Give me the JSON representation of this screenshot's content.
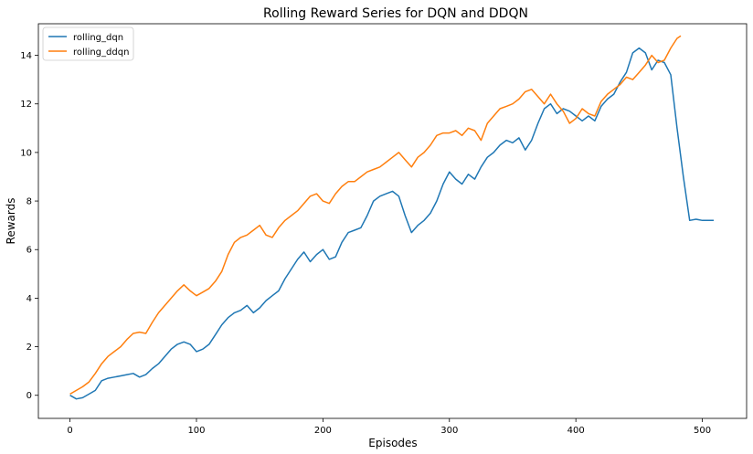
{
  "chart_data": {
    "type": "line",
    "title": "Rolling Reward Series for DQN and DDQN",
    "xlabel": "Episodes",
    "ylabel": "Rewards",
    "xlim": [
      -25,
      535
    ],
    "ylim": [
      -0.95,
      15.3
    ],
    "xticks": [
      0,
      100,
      200,
      300,
      400,
      500
    ],
    "yticks": [
      0,
      2,
      4,
      6,
      8,
      10,
      12,
      14
    ],
    "grid": false,
    "legend_position": "upper-left",
    "series": [
      {
        "name": "rolling_dqn",
        "color": "#1f77b4",
        "x": [
          0,
          5,
          10,
          15,
          20,
          25,
          30,
          35,
          40,
          45,
          50,
          55,
          60,
          65,
          70,
          75,
          80,
          85,
          90,
          95,
          100,
          105,
          110,
          115,
          120,
          125,
          130,
          135,
          140,
          145,
          150,
          155,
          160,
          165,
          170,
          175,
          180,
          185,
          190,
          195,
          200,
          205,
          210,
          215,
          220,
          225,
          230,
          235,
          240,
          245,
          250,
          255,
          260,
          265,
          270,
          275,
          280,
          285,
          290,
          295,
          300,
          305,
          310,
          315,
          320,
          325,
          330,
          335,
          340,
          345,
          350,
          355,
          360,
          365,
          370,
          375,
          380,
          385,
          390,
          395,
          400,
          405,
          410,
          415,
          420,
          425,
          430,
          435,
          440,
          445,
          450,
          455,
          460,
          465,
          470,
          475,
          480,
          485,
          490,
          495,
          500,
          505,
          509
        ],
        "y": [
          0.0,
          -0.15,
          -0.1,
          0.05,
          0.2,
          0.6,
          0.7,
          0.75,
          0.8,
          0.85,
          0.9,
          0.75,
          0.85,
          1.1,
          1.3,
          1.6,
          1.9,
          2.1,
          2.2,
          2.1,
          1.8,
          1.9,
          2.1,
          2.5,
          2.9,
          3.2,
          3.4,
          3.5,
          3.7,
          3.4,
          3.6,
          3.9,
          4.1,
          4.3,
          4.8,
          5.2,
          5.6,
          5.9,
          5.5,
          5.8,
          6.0,
          5.6,
          5.7,
          6.3,
          6.7,
          6.8,
          6.9,
          7.4,
          8.0,
          8.2,
          8.3,
          8.4,
          8.2,
          7.4,
          6.7,
          7.0,
          7.2,
          7.5,
          8.0,
          8.7,
          9.2,
          8.9,
          8.7,
          9.1,
          8.9,
          9.4,
          9.8,
          10.0,
          10.3,
          10.5,
          10.4,
          10.6,
          10.1,
          10.5,
          11.2,
          11.8,
          12.0,
          11.6,
          11.8,
          11.7,
          11.5,
          11.3,
          11.5,
          11.3,
          11.9,
          12.2,
          12.4,
          12.9,
          13.3,
          14.1,
          14.3,
          14.1,
          13.4,
          13.8,
          13.7,
          13.2,
          11.0,
          9.0,
          7.2,
          7.25,
          7.2,
          7.2,
          7.2
        ]
      },
      {
        "name": "rolling_ddqn",
        "color": "#ff7f0e",
        "x": [
          0,
          5,
          10,
          15,
          20,
          25,
          30,
          35,
          40,
          45,
          50,
          55,
          60,
          65,
          70,
          75,
          80,
          85,
          90,
          95,
          100,
          105,
          110,
          115,
          120,
          125,
          130,
          135,
          140,
          145,
          150,
          155,
          160,
          165,
          170,
          175,
          180,
          185,
          190,
          195,
          200,
          205,
          210,
          215,
          220,
          225,
          230,
          235,
          240,
          245,
          250,
          255,
          260,
          265,
          270,
          275,
          280,
          285,
          290,
          295,
          300,
          305,
          310,
          315,
          320,
          325,
          330,
          335,
          340,
          345,
          350,
          355,
          360,
          365,
          370,
          375,
          380,
          385,
          390,
          395,
          400,
          405,
          410,
          415,
          420,
          425,
          430,
          435,
          440,
          445,
          450,
          455,
          460,
          465,
          470,
          475,
          480,
          483
        ],
        "y": [
          0.05,
          0.2,
          0.35,
          0.55,
          0.9,
          1.3,
          1.6,
          1.8,
          2.0,
          2.3,
          2.55,
          2.6,
          2.55,
          3.0,
          3.4,
          3.7,
          4.0,
          4.3,
          4.55,
          4.3,
          4.1,
          4.25,
          4.4,
          4.7,
          5.1,
          5.8,
          6.3,
          6.5,
          6.6,
          6.8,
          7.0,
          6.6,
          6.5,
          6.9,
          7.2,
          7.4,
          7.6,
          7.9,
          8.2,
          8.3,
          8.0,
          7.9,
          8.3,
          8.6,
          8.8,
          8.8,
          9.0,
          9.2,
          9.3,
          9.4,
          9.6,
          9.8,
          10.0,
          9.7,
          9.4,
          9.8,
          10.0,
          10.3,
          10.7,
          10.8,
          10.8,
          10.9,
          10.7,
          11.0,
          10.9,
          10.5,
          11.2,
          11.5,
          11.8,
          11.9,
          12.0,
          12.2,
          12.5,
          12.6,
          12.3,
          12.0,
          12.4,
          12.0,
          11.7,
          11.2,
          11.4,
          11.8,
          11.6,
          11.5,
          12.1,
          12.4,
          12.6,
          12.8,
          13.1,
          13.0,
          13.3,
          13.6,
          14.0,
          13.7,
          13.8,
          14.3,
          14.7,
          14.8
        ]
      }
    ]
  }
}
